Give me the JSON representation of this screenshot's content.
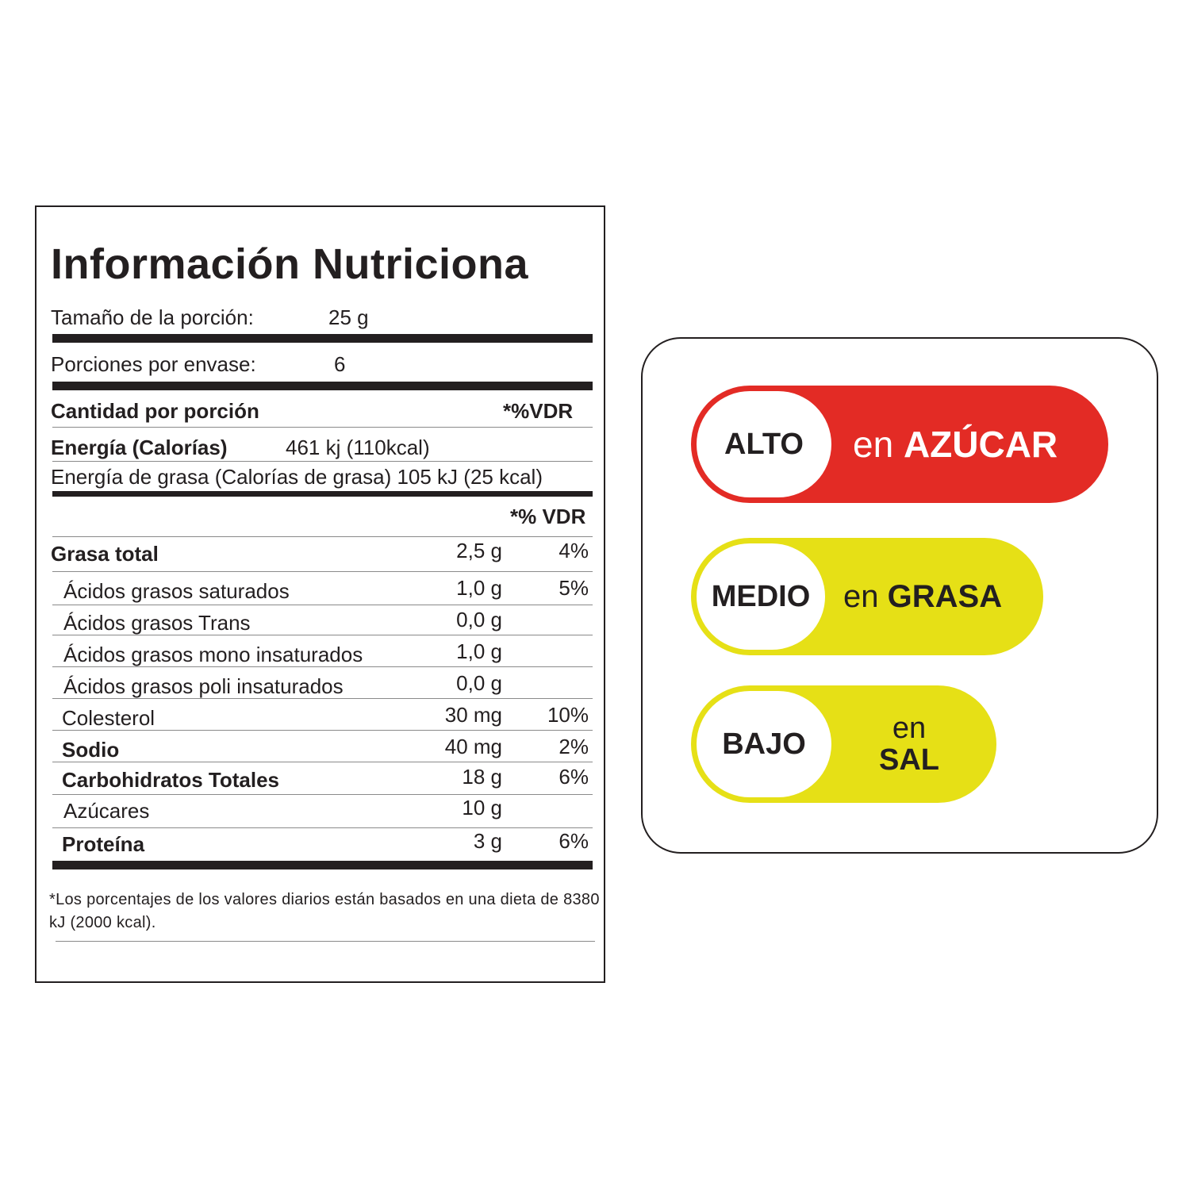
{
  "nutrition": {
    "title": "Información Nutriciona",
    "serving_size_label": "Tamaño de la porción:",
    "serving_size_value": "25 g",
    "servings_label": "Porciones por envase:",
    "servings_value": "6",
    "amount_label": "Cantidad por porción",
    "vdr_header_1": "*%VDR",
    "energy_label": "Energía (Calorías)",
    "energy_value": "461 kj (110kcal)",
    "fat_energy": "Energía de grasa (Calorías de grasa) 105 kJ (25 kcal)",
    "vdr_header_2": "*% VDR",
    "rows": [
      {
        "name": "Grasa total",
        "value": "2,5 g",
        "pct": "4%"
      },
      {
        "name": "Ácidos grasos saturados",
        "value": "1,0 g",
        "pct": "5%"
      },
      {
        "name": "Ácidos grasos Trans",
        "value": "0,0 g",
        "pct": ""
      },
      {
        "name": "Ácidos grasos mono insaturados",
        "value": "1,0 g",
        "pct": ""
      },
      {
        "name": "Ácidos grasos poli insaturados",
        "value": "0,0 g",
        "pct": ""
      },
      {
        "name": "Colesterol",
        "value": "30 mg",
        "pct": "10%"
      },
      {
        "name": "Sodio",
        "value": "40 mg",
        "pct": "2%"
      },
      {
        "name": "Carbohidratos Totales",
        "value": "18 g",
        "pct": "6%"
      },
      {
        "name": "Azúcares",
        "value": "10 g",
        "pct": ""
      },
      {
        "name": "Proteína",
        "value": "3 g",
        "pct": "6%"
      }
    ],
    "footnote": "*Los porcentajes de los valores diarios están basados en una dieta de 8380 kJ (2000 kcal)."
  },
  "badges": [
    {
      "level": "ALTO",
      "prefix": "en",
      "nutrient": "AZÚCAR",
      "color": "#e32b25"
    },
    {
      "level": "MEDIO",
      "prefix": "en",
      "nutrient": "GRASA",
      "color": "#e6e016"
    },
    {
      "level": "BAJO",
      "prefix": "en",
      "nutrient": "SAL",
      "color": "#e6e016"
    }
  ]
}
